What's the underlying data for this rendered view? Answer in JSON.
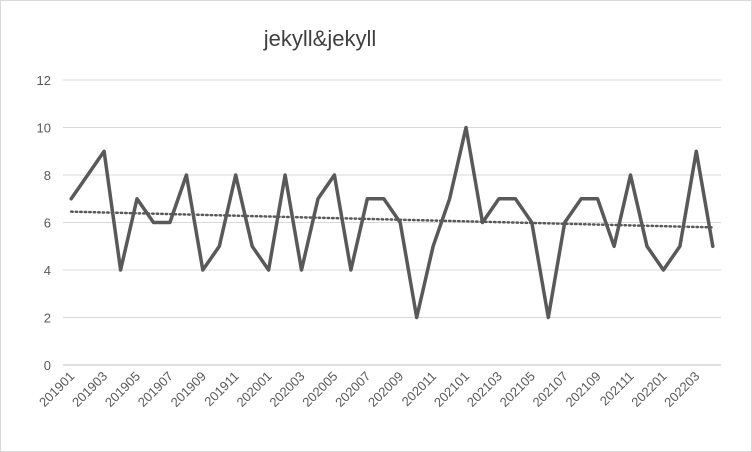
{
  "chart_data": {
    "type": "line",
    "title": "jekyll&jekyll",
    "xlabel": "",
    "ylabel": "",
    "ylim": [
      0,
      12
    ],
    "yticks": [
      0,
      2,
      4,
      6,
      8,
      10,
      12
    ],
    "grid": true,
    "legend": "none",
    "x": [
      "201901",
      "201902",
      "201903",
      "201904",
      "201905",
      "201906",
      "201907",
      "201908",
      "201909",
      "201910",
      "201911",
      "201912",
      "202001",
      "202002",
      "202003",
      "202004",
      "202005",
      "202006",
      "202007",
      "202008",
      "202009",
      "202010",
      "202011",
      "202012",
      "202101",
      "202102",
      "202103",
      "202104",
      "202105",
      "202106",
      "202107",
      "202108",
      "202109",
      "202110",
      "202111",
      "202112",
      "202201",
      "202202",
      "202203",
      "202204"
    ],
    "x_tick_labels": [
      "201901",
      "201903",
      "201905",
      "201907",
      "201909",
      "201911",
      "202001",
      "202003",
      "202005",
      "202007",
      "202009",
      "202011",
      "202101",
      "202103",
      "202105",
      "202107",
      "202109",
      "202111",
      "202201",
      "202203"
    ],
    "series": [
      {
        "values": [
          7,
          8,
          9,
          4,
          7,
          6,
          6,
          8,
          4,
          5,
          8,
          5,
          4,
          8,
          4,
          7,
          8,
          4,
          7,
          7,
          6,
          2,
          5,
          7,
          10,
          6,
          7,
          7,
          6,
          2,
          6,
          7,
          7,
          5,
          8,
          5,
          4,
          5,
          9,
          5
        ]
      }
    ],
    "trendline": {
      "type": "linear",
      "style": "dotted"
    },
    "colors": {
      "series": "#595959",
      "trend": "#595959"
    }
  }
}
